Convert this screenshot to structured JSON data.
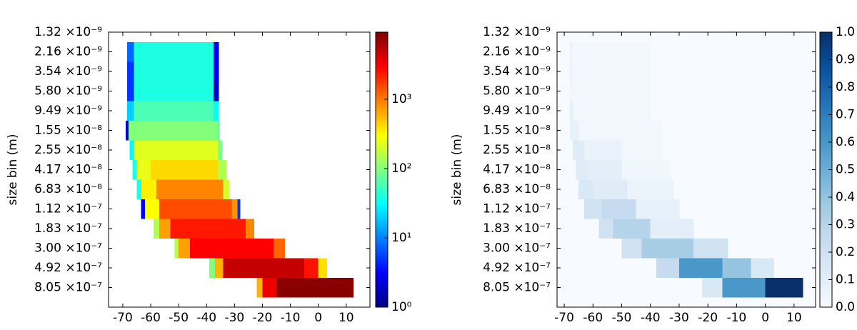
{
  "chart_data": [
    {
      "type": "heatmap",
      "ylabel": "size bin (m)",
      "colormap": "jet",
      "color_scale": "log",
      "xlim": [
        -75.1,
        18.5
      ],
      "xticks": [
        -70,
        -60,
        -50,
        -40,
        -30,
        -20,
        -10,
        0,
        10
      ],
      "ylim": [
        14,
        0
      ],
      "yticks": [
        {
          "value": 0,
          "label": "1.32 ×10⁻⁹"
        },
        {
          "value": 1,
          "label": "2.16 ×10⁻⁹"
        },
        {
          "value": 2,
          "label": "3.54 ×10⁻⁹"
        },
        {
          "value": 3,
          "label": "5.80 ×10⁻⁹"
        },
        {
          "value": 4,
          "label": "9.49 ×10⁻⁹"
        },
        {
          "value": 5,
          "label": "1.55 ×10⁻⁸"
        },
        {
          "value": 6,
          "label": "2.55 ×10⁻⁸"
        },
        {
          "value": 7,
          "label": "4.17 ×10⁻⁸"
        },
        {
          "value": 8,
          "label": "6.83 ×10⁻⁸"
        },
        {
          "value": 9,
          "label": "1.12 ×10⁻⁷"
        },
        {
          "value": 10,
          "label": "1.83 ×10⁻⁷"
        },
        {
          "value": 11,
          "label": "3.00 ×10⁻⁷"
        },
        {
          "value": 12,
          "label": "4.92 ×10⁻⁷"
        },
        {
          "value": 13,
          "label": "8.05 ×10⁻⁷"
        }
      ],
      "clim": [
        1,
        9300
      ],
      "cticks": [
        {
          "value": 1,
          "label": "10⁰"
        },
        {
          "value": 10,
          "label": "10¹"
        },
        {
          "value": 100,
          "label": "10²"
        },
        {
          "value": 1000,
          "label": "10³"
        }
      ],
      "rows": [
        {
          "x_edges": [],
          "values": []
        },
        {
          "x_edges": [
            -68.5,
            -66,
            -37.5,
            -35.7
          ],
          "values": [
            8,
            40,
            3
          ]
        },
        {
          "x_edges": [
            -68.5,
            -66,
            -37.5,
            -35.7
          ],
          "values": [
            5,
            40,
            3
          ]
        },
        {
          "x_edges": [
            -68.5,
            -66,
            -37.5,
            -35.7
          ],
          "values": [
            5,
            40,
            2
          ]
        },
        {
          "x_edges": [
            -68.5,
            -66,
            -37.5,
            -35.7
          ],
          "values": [
            20,
            60,
            30
          ]
        },
        {
          "x_edges": [
            -69,
            -68,
            -36,
            -35.5
          ],
          "values": [
            2,
            100,
            60
          ]
        },
        {
          "x_edges": [
            -67.5,
            -66,
            -36,
            -34.5
          ],
          "values": [
            30,
            230,
            90
          ]
        },
        {
          "x_edges": [
            -66.5,
            -65,
            -60,
            -36,
            -33
          ],
          "values": [
            40,
            250,
            420,
            150
          ]
        },
        {
          "x_edges": [
            -65,
            -63.5,
            -58,
            -34,
            -32
          ],
          "values": [
            40,
            350,
            900,
            200
          ]
        },
        {
          "x_edges": [
            -63.5,
            -62,
            -57,
            -31,
            -29,
            -28
          ],
          "values": [
            3,
            300,
            1500,
            800,
            5
          ]
        },
        {
          "x_edges": [
            -59,
            -57,
            -53,
            -26,
            -23
          ],
          "values": [
            150,
            700,
            2400,
            900
          ]
        },
        {
          "x_edges": [
            -51.5,
            -50,
            -46,
            -16,
            -12
          ],
          "values": [
            150,
            700,
            3000,
            1200
          ]
        },
        {
          "x_edges": [
            -39,
            -37,
            -34,
            -5,
            0,
            3
          ],
          "values": [
            100,
            600,
            5000,
            2500,
            400
          ]
        },
        {
          "x_edges": [
            -22,
            -20,
            -15,
            12.5
          ],
          "values": [
            600,
            3500,
            8500
          ]
        }
      ]
    },
    {
      "type": "heatmap",
      "ylabel": "size bin (m)",
      "colormap": "blues",
      "color_scale": "linear",
      "xlim": [
        -72.5,
        17.5
      ],
      "xticks": [
        -70,
        -60,
        -50,
        -40,
        -30,
        -20,
        -10,
        0,
        10
      ],
      "ylim": [
        14,
        0
      ],
      "yticks": [
        {
          "value": 0,
          "label": "1.32 ×10⁻⁹"
        },
        {
          "value": 1,
          "label": "2.16 ×10⁻⁹"
        },
        {
          "value": 2,
          "label": "3.54 ×10⁻⁹"
        },
        {
          "value": 3,
          "label": "5.80 ×10⁻⁹"
        },
        {
          "value": 4,
          "label": "9.49 ×10⁻⁹"
        },
        {
          "value": 5,
          "label": "1.55 ×10⁻⁸"
        },
        {
          "value": 6,
          "label": "2.55 ×10⁻⁸"
        },
        {
          "value": 7,
          "label": "4.17 ×10⁻⁸"
        },
        {
          "value": 8,
          "label": "6.83 ×10⁻⁸"
        },
        {
          "value": 9,
          "label": "1.12 ×10⁻⁷"
        },
        {
          "value": 10,
          "label": "1.83 ×10⁻⁷"
        },
        {
          "value": 11,
          "label": "3.00 ×10⁻⁷"
        },
        {
          "value": 12,
          "label": "4.92 ×10⁻⁷"
        },
        {
          "value": 13,
          "label": "8.05 ×10⁻⁷"
        }
      ],
      "clim": [
        0,
        1
      ],
      "cticks": [
        {
          "value": 0,
          "label": "0.0"
        },
        0.1,
        0.2,
        0.3,
        0.4,
        0.5,
        0.6,
        0.7,
        0.8,
        0.9,
        {
          "value": 1,
          "label": "1.0"
        }
      ],
      "rows": [
        {
          "x_edges": [],
          "values": []
        },
        {
          "x_edges": [
            -68,
            -67,
            -40
          ],
          "values": [
            0.06,
            0.02
          ]
        },
        {
          "x_edges": [
            -68,
            -67,
            -40
          ],
          "values": [
            0.05,
            0.02
          ]
        },
        {
          "x_edges": [
            -68,
            -67,
            -40
          ],
          "values": [
            0.04,
            0.02
          ]
        },
        {
          "x_edges": [
            -68,
            -67,
            -40
          ],
          "values": [
            0.08,
            0.03
          ]
        },
        {
          "x_edges": [
            -68,
            -65,
            -36
          ],
          "values": [
            0.08,
            0.03
          ]
        },
        {
          "x_edges": [
            -67,
            -63,
            -50,
            -36
          ],
          "values": [
            0.12,
            0.07,
            0.03
          ]
        },
        {
          "x_edges": [
            -66,
            -62,
            -50,
            -33
          ],
          "values": [
            0.12,
            0.1,
            0.04
          ]
        },
        {
          "x_edges": [
            -65,
            -60,
            -48,
            -32
          ],
          "values": [
            0.15,
            0.12,
            0.06
          ]
        },
        {
          "x_edges": [
            -63,
            -57,
            -45,
            -30
          ],
          "values": [
            0.2,
            0.25,
            0.08
          ]
        },
        {
          "x_edges": [
            -58,
            -53,
            -40,
            -25
          ],
          "values": [
            0.2,
            0.3,
            0.1
          ]
        },
        {
          "x_edges": [
            -50,
            -43,
            -25,
            -13
          ],
          "values": [
            0.2,
            0.35,
            0.2
          ]
        },
        {
          "x_edges": [
            -38,
            -30,
            -15,
            -5,
            3
          ],
          "values": [
            0.25,
            0.6,
            0.4,
            0.15
          ]
        },
        {
          "x_edges": [
            -22,
            -15,
            0,
            13
          ],
          "values": [
            0.15,
            0.6,
            1
          ]
        }
      ]
    }
  ]
}
